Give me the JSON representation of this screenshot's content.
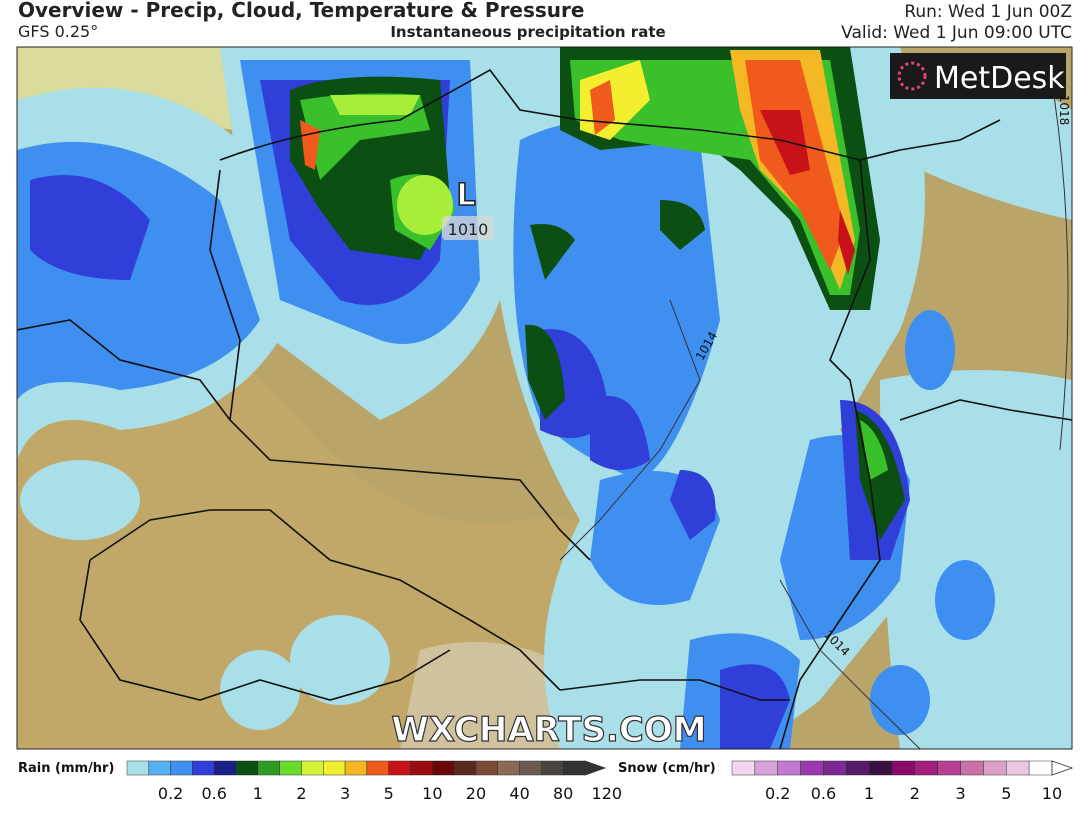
{
  "header": {
    "title": "Overview - Precip, Cloud, Temperature & Pressure",
    "model": "GFS 0.25°",
    "subtitle": "Instantaneous precipitation rate",
    "run": "Run: Wed 1 Jun 00Z",
    "valid": "Valid: Wed 1 Jun 09:00 UTC"
  },
  "map": {
    "brand": "MetDesk",
    "watermark": "WXCHARTS.COM",
    "low": {
      "symbol": "L",
      "pressure": "1010"
    },
    "isobar_labels": [
      "1014",
      "1014",
      "1018"
    ]
  },
  "legend": {
    "rain": {
      "title": "Rain (mm/hr)",
      "labels": [
        "0.2",
        "0.6",
        "1",
        "2",
        "3",
        "5",
        "10",
        "20",
        "40",
        "80",
        "120"
      ]
    },
    "snow": {
      "title": "Snow (cm/hr)",
      "labels": [
        "0.2",
        "0.6",
        "1",
        "2",
        "3",
        "5",
        "10"
      ]
    }
  }
}
